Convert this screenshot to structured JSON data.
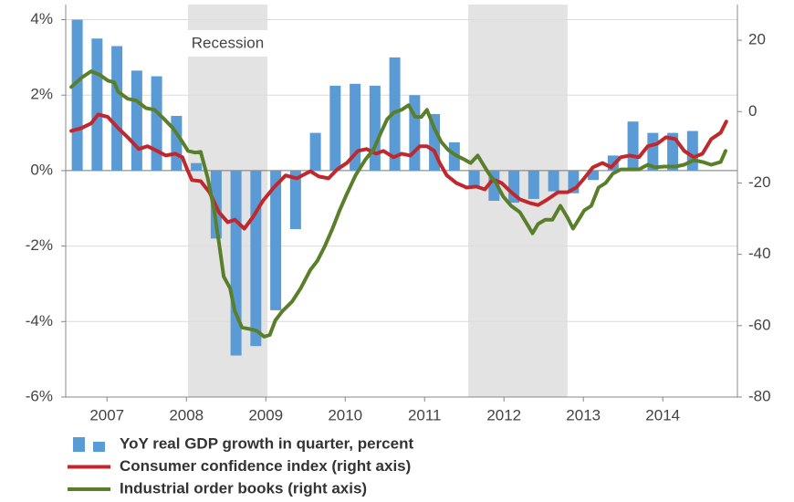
{
  "chart_data": {
    "type": "combo",
    "annotations": [
      {
        "text": "Recession",
        "x": 2009.02
      }
    ],
    "shaded_periods": [
      [
        2008.52,
        2009.52
      ],
      [
        2012.05,
        2013.3
      ]
    ],
    "xlim": [
      2006.98,
      2015.44
    ],
    "xticks": [
      {
        "value": 2007.5,
        "label": "2007"
      },
      {
        "value": 2008.5,
        "label": "2008"
      },
      {
        "value": 2009.5,
        "label": "2009"
      },
      {
        "value": 2010.5,
        "label": "2010"
      },
      {
        "value": 2011.5,
        "label": "2011"
      },
      {
        "value": 2012.5,
        "label": "2012"
      },
      {
        "value": 2013.5,
        "label": "2013"
      },
      {
        "value": 2014.5,
        "label": "2014"
      }
    ],
    "ylim": [
      -6,
      4.4
    ],
    "yticks": [
      {
        "value": 4,
        "label": "4%"
      },
      {
        "value": 2,
        "label": "2%"
      },
      {
        "value": 0,
        "label": "0%"
      },
      {
        "value": -2,
        "label": "-2%"
      },
      {
        "value": -4,
        "label": "-4%"
      },
      {
        "value": -6,
        "label": "-6%"
      }
    ],
    "y2lim": [
      -80,
      30
    ],
    "y2ticks": [
      20,
      0,
      -20,
      -40,
      -60,
      -80
    ],
    "grid": true,
    "series": [
      {
        "name": "YoY real GDP growth in quarter, percent",
        "type": "bar",
        "color": "#5b9bd5",
        "x": [
          2007.125,
          2007.375,
          2007.625,
          2007.875,
          2008.125,
          2008.375,
          2008.625,
          2008.875,
          2009.125,
          2009.375,
          2009.625,
          2009.875,
          2010.125,
          2010.375,
          2010.625,
          2010.875,
          2011.125,
          2011.375,
          2011.625,
          2011.875,
          2012.125,
          2012.375,
          2012.625,
          2012.875,
          2013.125,
          2013.375,
          2013.625,
          2013.875,
          2014.125,
          2014.375,
          2014.625,
          2014.875
        ],
        "values": [
          4.0,
          3.5,
          3.3,
          2.65,
          2.5,
          1.45,
          0.2,
          -1.8,
          -4.9,
          -4.65,
          -3.7,
          -1.55,
          1.0,
          2.25,
          2.3,
          2.25,
          3.0,
          2.0,
          1.5,
          0.75,
          -0.45,
          -0.8,
          -0.85,
          -0.75,
          -0.55,
          -0.6,
          -0.25,
          0.4,
          1.3,
          1.0,
          1.0,
          1.05
        ]
      },
      {
        "name": "Consumer confidence index (right axis)",
        "type": "line",
        "axis": "y2",
        "color": "#c0282d",
        "x": [
          2007.05,
          2007.18,
          2007.3,
          2007.39,
          2007.51,
          2007.64,
          2007.76,
          2007.9,
          2008.01,
          2008.13,
          2008.24,
          2008.36,
          2008.45,
          2008.51,
          2008.57,
          2008.68,
          2008.79,
          2008.91,
          2009.02,
          2009.11,
          2009.23,
          2009.34,
          2009.46,
          2009.6,
          2009.75,
          2009.89,
          2010.06,
          2010.17,
          2010.29,
          2010.4,
          2010.52,
          2010.66,
          2010.77,
          2010.89,
          2010.98,
          2011.11,
          2011.21,
          2011.32,
          2011.44,
          2011.53,
          2011.62,
          2011.69,
          2011.78,
          2011.9,
          2012.03,
          2012.15,
          2012.26,
          2012.36,
          2012.47,
          2012.59,
          2012.7,
          2012.82,
          2012.93,
          2013.05,
          2013.18,
          2013.3,
          2013.41,
          2013.51,
          2013.62,
          2013.74,
          2013.85,
          2013.97,
          2014.08,
          2014.2,
          2014.31,
          2014.43,
          2014.54,
          2014.66,
          2014.77,
          2014.89,
          2015.0,
          2015.11,
          2015.23,
          2015.3
        ],
        "values": [
          -5.4,
          -4.6,
          -3.3,
          -0.8,
          -1.5,
          -4.6,
          -7.2,
          -10.5,
          -9.7,
          -11,
          -12.3,
          -11.8,
          -12.8,
          -16.2,
          -19.2,
          -19.5,
          -22.6,
          -28.2,
          -31,
          -30.3,
          -32.8,
          -29.5,
          -25.1,
          -21.3,
          -17.9,
          -18.7,
          -16.7,
          -18.2,
          -18.7,
          -16.2,
          -14.4,
          -11,
          -10.5,
          -11.8,
          -11,
          -12.8,
          -11.8,
          -12.3,
          -9.7,
          -9.7,
          -11,
          -14.4,
          -17.9,
          -20,
          -21.3,
          -21,
          -21.8,
          -19,
          -20,
          -22.6,
          -24.6,
          -25.6,
          -26.2,
          -24.6,
          -22.6,
          -22.6,
          -21.3,
          -18.7,
          -15.6,
          -14.4,
          -15.6,
          -12.8,
          -12.3,
          -12.8,
          -9.7,
          -9,
          -7.2,
          -7.7,
          -11,
          -12.8,
          -11.8,
          -7.7,
          -5.9,
          -2.8
        ]
      },
      {
        "name": "Industrial order books (right axis)",
        "type": "line",
        "axis": "y2",
        "color": "#5a7f2b",
        "x": [
          2007.05,
          2007.18,
          2007.3,
          2007.41,
          2007.51,
          2007.59,
          2007.64,
          2007.76,
          2007.87,
          2007.99,
          2008.1,
          2008.22,
          2008.33,
          2008.45,
          2008.52,
          2008.61,
          2008.68,
          2008.77,
          2008.85,
          2008.91,
          2008.97,
          2009.05,
          2009.11,
          2009.2,
          2009.31,
          2009.39,
          2009.48,
          2009.55,
          2009.62,
          2009.71,
          2009.83,
          2009.94,
          2010.06,
          2010.15,
          2010.24,
          2010.34,
          2010.43,
          2010.52,
          2010.63,
          2010.75,
          2010.86,
          2010.95,
          2011.03,
          2011.11,
          2011.21,
          2011.3,
          2011.38,
          2011.46,
          2011.53,
          2011.62,
          2011.71,
          2011.8,
          2011.9,
          2011.99,
          2012.08,
          2012.17,
          2012.24,
          2012.31,
          2012.4,
          2012.49,
          2012.59,
          2012.7,
          2012.79,
          2012.86,
          2012.93,
          2013.02,
          2013.11,
          2013.21,
          2013.3,
          2013.37,
          2013.44,
          2013.51,
          2013.6,
          2013.69,
          2013.78,
          2013.87,
          2013.97,
          2014.08,
          2014.2,
          2014.31,
          2014.4,
          2014.52,
          2014.66,
          2014.77,
          2014.89,
          2015.0,
          2015.11,
          2015.23,
          2015.29
        ],
        "values": [
          6.9,
          9.5,
          11.3,
          10.3,
          8.7,
          8.2,
          5.6,
          3.6,
          3.1,
          1,
          0.5,
          -2.1,
          -4.6,
          -8.5,
          -11,
          -11.5,
          -11.3,
          -18.7,
          -27.7,
          -36.7,
          -46.2,
          -49.5,
          -55.9,
          -60.5,
          -61,
          -61.5,
          -63.1,
          -62.6,
          -58.5,
          -55.9,
          -53.3,
          -49.5,
          -44.4,
          -41.8,
          -37.9,
          -32.8,
          -27.7,
          -23.1,
          -17.9,
          -13.6,
          -10.5,
          -5.9,
          -2.1,
          -0.3,
          0.5,
          1.8,
          -1.5,
          -1.5,
          0.5,
          -4.6,
          -8.5,
          -10.8,
          -12.3,
          -13.3,
          -14.4,
          -12.3,
          -14.9,
          -17.4,
          -20,
          -23.8,
          -26.4,
          -28.2,
          -31.5,
          -34.1,
          -31.5,
          -30.3,
          -30.3,
          -26.4,
          -29.7,
          -32.8,
          -30.3,
          -27.7,
          -26.4,
          -21.3,
          -20,
          -17.4,
          -16.2,
          -16.2,
          -16.2,
          -14.9,
          -15.6,
          -15.4,
          -15.4,
          -14.9,
          -13.6,
          -14.1,
          -14.9,
          -14.1,
          -11
        ]
      }
    ]
  }
}
